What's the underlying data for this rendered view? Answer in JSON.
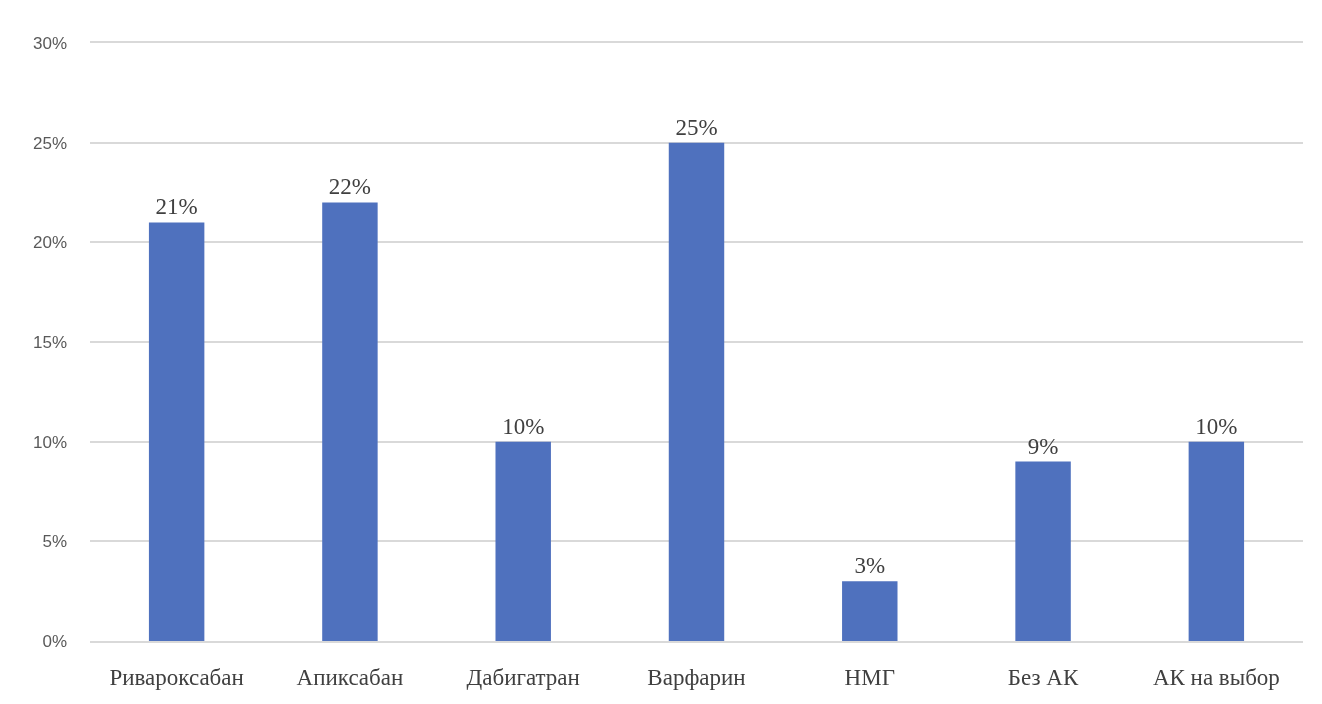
{
  "chart_data": {
    "type": "bar",
    "categories": [
      "Ривароксабан",
      "Апиксабан",
      "Дабигатран",
      "Варфарин",
      "НМГ",
      "Без АК",
      "АК на выбор"
    ],
    "values": [
      21,
      22,
      10,
      25,
      3,
      9,
      10
    ],
    "value_labels": [
      "21%",
      "22%",
      "10%",
      "25%",
      "3%",
      "9%",
      "10%"
    ],
    "color": "#4f71be",
    "ylim": [
      0,
      30
    ],
    "yticks": [
      {
        "value": 0,
        "label": "0%"
      },
      {
        "value": 5,
        "label": "5%"
      },
      {
        "value": 10,
        "label": "10%"
      },
      {
        "value": 15,
        "label": "15%"
      },
      {
        "value": 20,
        "label": "20%"
      },
      {
        "value": 25,
        "label": "25%"
      },
      {
        "value": 30,
        "label": "30%"
      }
    ],
    "grid": "y"
  }
}
